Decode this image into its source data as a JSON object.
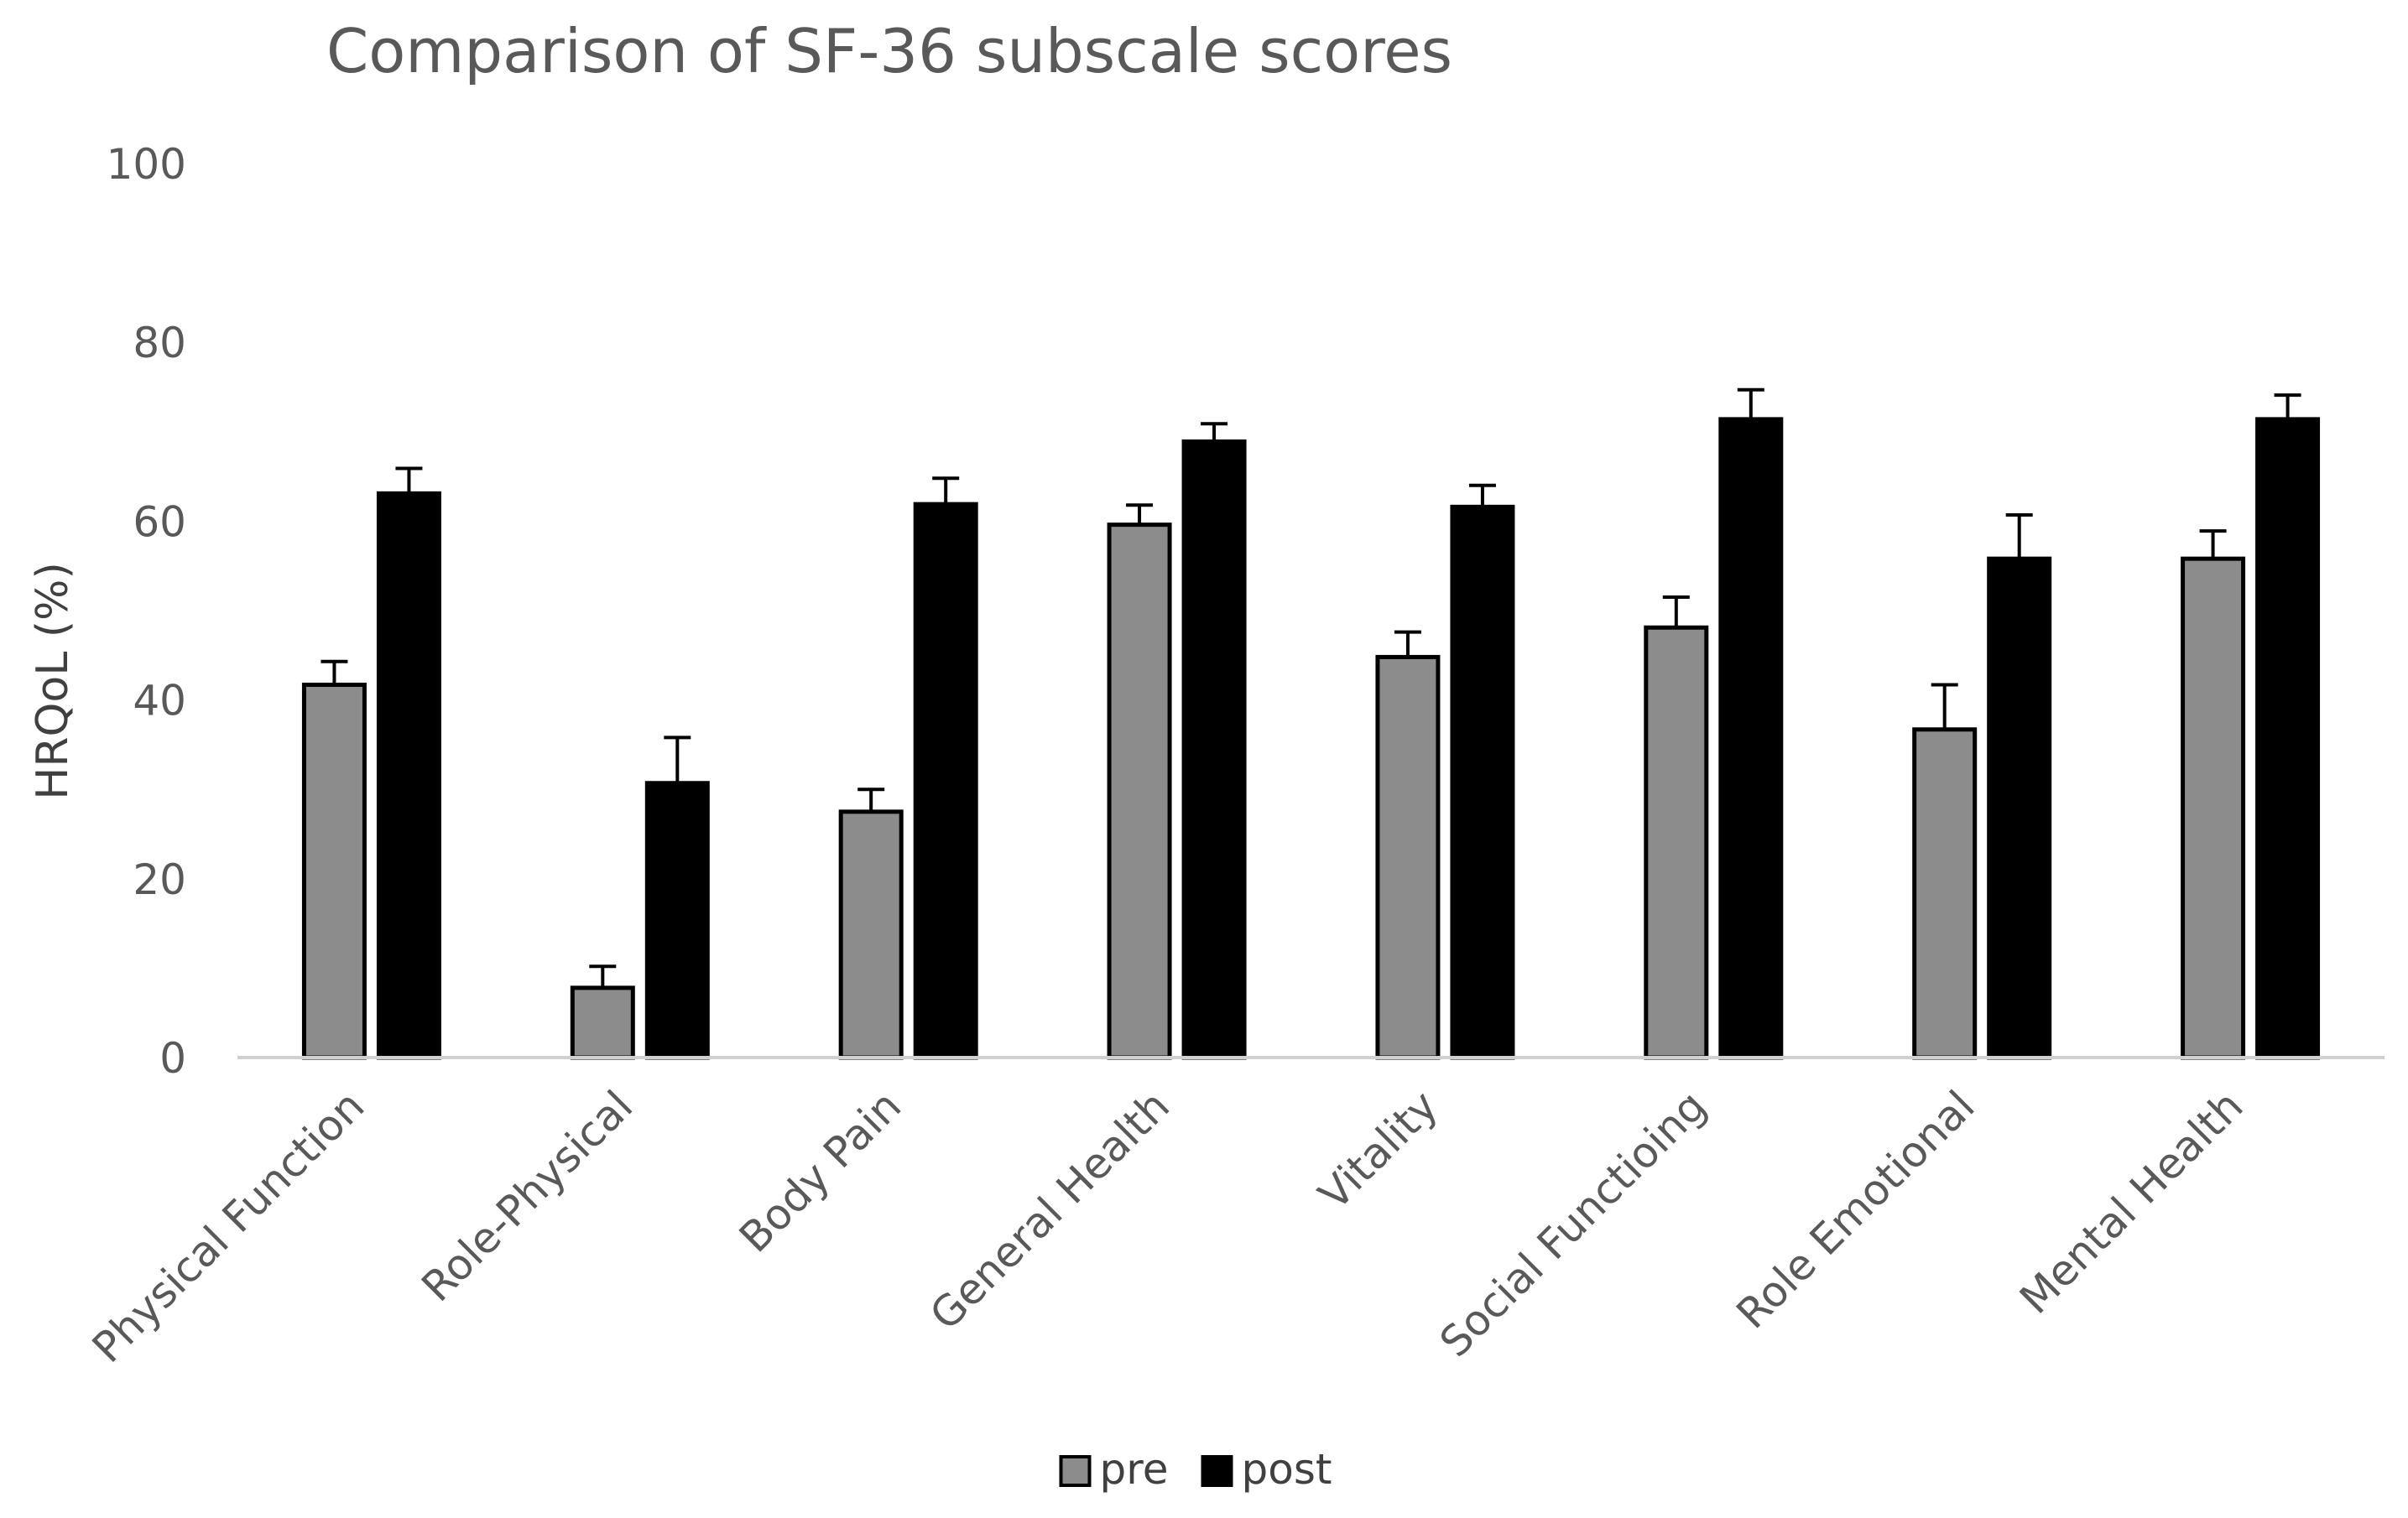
{
  "chart_data": {
    "type": "bar",
    "title": "Comparison of SF-36 subscale scores",
    "xlabel": "",
    "ylabel": "HRQoL (%)",
    "ylim": [
      0,
      100
    ],
    "yticks": [
      0,
      20,
      40,
      60,
      80,
      100
    ],
    "grid": false,
    "legend_position": "bottom",
    "categories": [
      "Physical Function",
      "Role-Physical",
      "Body Pain",
      "General Health",
      "Vitality",
      "Social Functioing",
      "Role Emotional",
      "Mental Health"
    ],
    "series": [
      {
        "name": "pre",
        "color": "#8c8c8c",
        "values": [
          41.7,
          7.8,
          27.5,
          59.6,
          44.8,
          48.1,
          36.7,
          55.8
        ],
        "error": [
          2.6,
          2.4,
          2.5,
          2.2,
          2.8,
          3.4,
          5.0,
          3.1
        ]
      },
      {
        "name": "post",
        "color": "#000000",
        "values": [
          63.1,
          30.7,
          61.9,
          68.9,
          61.6,
          71.4,
          55.8,
          71.4
        ],
        "error": [
          2.8,
          5.1,
          2.9,
          2.0,
          2.4,
          3.3,
          4.9,
          2.7
        ]
      }
    ]
  }
}
